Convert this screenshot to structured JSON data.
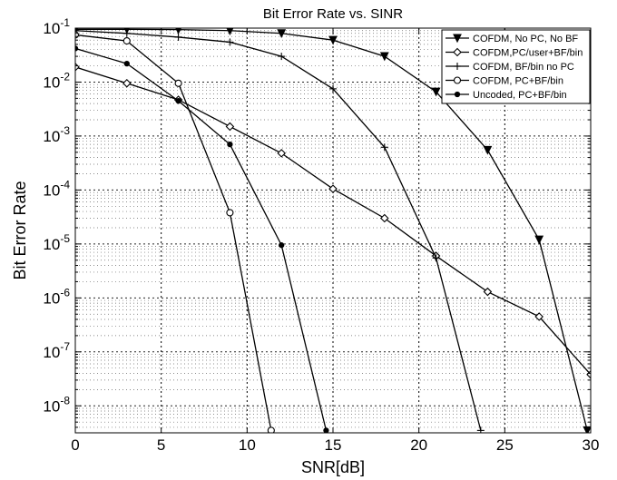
{
  "chart_data": {
    "type": "line",
    "title": "Bit Error Rate vs. SINR",
    "xlabel": "SNR[dB]",
    "ylabel": "Bit Error Rate",
    "xlim": [
      0,
      30
    ],
    "ylim_log10": [
      -8.5,
      -1
    ],
    "yscale": "log",
    "grid": true,
    "legend_position": "top-right",
    "x_ticks": [
      0,
      5,
      10,
      15,
      20,
      25,
      30
    ],
    "x_tick_labels": [
      "0",
      "5",
      "10",
      "15",
      "20",
      "25",
      "30"
    ],
    "y_ticks_exp": [
      -1,
      -2,
      -3,
      -4,
      -5,
      -6,
      -7,
      -8
    ],
    "series": [
      {
        "name": "COFDM, No PC, No BF",
        "marker": "triangle-down",
        "x": [
          0,
          3,
          6,
          9,
          12,
          15,
          18,
          21,
          24,
          27,
          29.8
        ],
        "y": [
          0.095,
          0.095,
          0.094,
          0.09,
          0.08,
          0.06,
          0.03,
          0.0066,
          0.00055,
          1.2e-05,
          3.5e-09
        ]
      },
      {
        "name": "COFDM,PC/user+BF/bin",
        "marker": "diamond",
        "x": [
          0,
          3,
          6,
          9,
          12,
          15,
          18,
          21,
          24,
          27,
          30
        ],
        "y": [
          0.019,
          0.0095,
          0.0047,
          0.0015,
          0.00048,
          0.000105,
          3e-05,
          6e-06,
          1.3e-06,
          4.5e-07,
          3.8e-08
        ]
      },
      {
        "name": "COFDM, BF/bin no PC",
        "marker": "plus",
        "x": [
          0,
          3,
          6,
          9,
          12,
          15,
          18,
          21,
          23.6
        ],
        "y": [
          0.09,
          0.08,
          0.068,
          0.055,
          0.03,
          0.0075,
          0.00062,
          5.5e-06,
          3.5e-09
        ]
      },
      {
        "name": "COFDM, PC+BF/bin",
        "marker": "circle",
        "x": [
          0,
          3,
          6,
          9,
          11.4
        ],
        "y": [
          0.075,
          0.058,
          0.0095,
          3.8e-05,
          3.5e-09
        ]
      },
      {
        "name": "Uncoded, PC+BF/bin",
        "marker": "star",
        "x": [
          0,
          3,
          6,
          9,
          12,
          14.6
        ],
        "y": [
          0.042,
          0.022,
          0.0045,
          0.0007,
          9.5e-06,
          3.5e-09
        ]
      }
    ]
  }
}
